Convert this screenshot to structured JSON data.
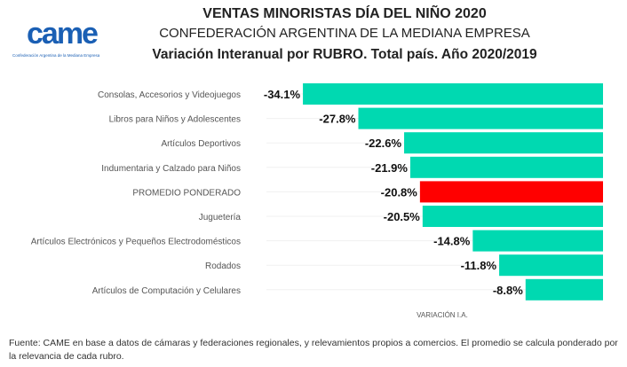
{
  "logo": {
    "word": "came",
    "tagline": "Confederación Argentina de la Mediana Empresa",
    "color": "#1a5fb4"
  },
  "header": {
    "title": "VENTAS MINORISTAS DÍA DEL NIÑO 2020",
    "subtitle": "CONFEDERACIÓN ARGENTINA DE LA MEDIANA EMPRESA",
    "chart_title": "Variación Interanual por RUBRO. Total país. Año 2020/2019"
  },
  "footer": {
    "source": "Fuente: CAME en base a datos de cámaras y federaciones regionales, y relevamientos propios a comercios. El promedio se calcula ponderado por la relevancia de cada rubro."
  },
  "chart_data": {
    "type": "bar",
    "orientation": "horizontal",
    "title": "Variación Interanual por RUBRO. Total país. Año 2020/2019",
    "xlabel": "VARIACIÓN I.A.",
    "ylabel": "",
    "categories": [
      "Consolas, Accesorios y Videojuegos",
      "Libros para Niños y Adolescentes",
      "Artículos Deportivos",
      "Indumentaria y Calzado para Niños",
      "PROMEDIO PONDERADO",
      "Juguetería",
      "Artículos Electrónicos y Pequeños Electrodomésticos",
      "Rodados",
      "Artículos de Computación y Celulares"
    ],
    "values": [
      -34.1,
      -27.8,
      -22.6,
      -21.9,
      -20.8,
      -20.5,
      -14.8,
      -11.8,
      -8.8
    ],
    "data_labels": [
      "-34.1%",
      "-27.8%",
      "-22.6%",
      "-21.9%",
      "-20.8%",
      "-20.5%",
      "-14.8%",
      "-11.8%",
      "-8.8%"
    ],
    "highlight_index": 4,
    "colors": {
      "default": "#00d9b1",
      "highlight": "#ff0000"
    },
    "xlim": [
      -34.1,
      0
    ],
    "grid": false,
    "legend": "none"
  }
}
